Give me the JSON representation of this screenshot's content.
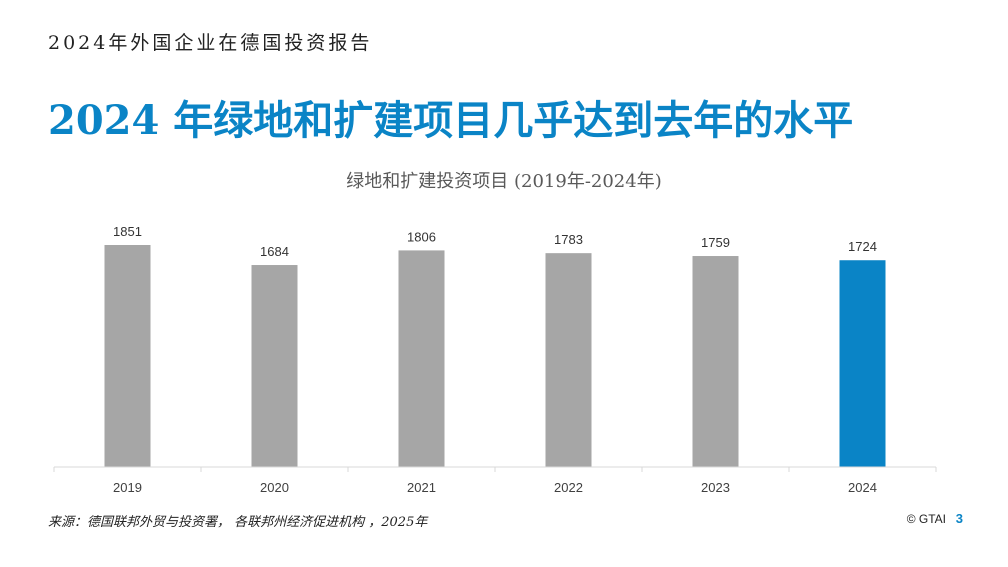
{
  "header": {
    "text": "2024年外国企业在德国投资报告"
  },
  "slide": {
    "title": "2024 年绿地和扩建项目几乎达到去年的水平"
  },
  "chart_data": {
    "type": "bar",
    "title": "绿地和扩建投资项目 (2019年-2024年)",
    "categories": [
      "2019",
      "2020",
      "2021",
      "2022",
      "2023",
      "2024"
    ],
    "values": [
      1851,
      1684,
      1806,
      1783,
      1759,
      1724
    ],
    "data_labels": [
      "1851",
      "1684",
      "1806",
      "1783",
      "1759",
      "1724"
    ],
    "ylim": [
      0,
      1851
    ],
    "grid": false,
    "colors": {
      "default": "#a6a6a6",
      "highlight": "#0a84c6",
      "axis": "#d9d9d9"
    },
    "highlight_category": "2024"
  },
  "footer": {
    "source": "来源：德国联邦外贸与投资署， 各联邦州经济促进机构 ，2025年",
    "copyright": "© GTAI",
    "page_number": "3"
  }
}
